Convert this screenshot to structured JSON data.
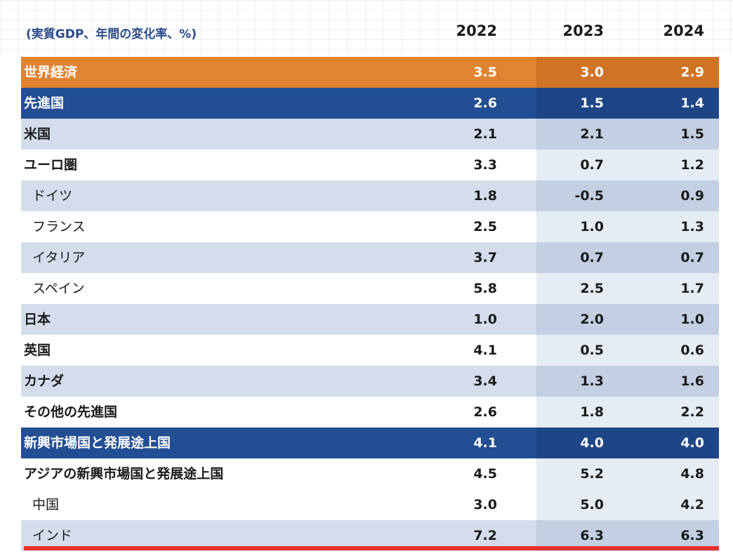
{
  "chart_data": {
    "type": "table",
    "unit_label": "(実質GDP、年間の変化率、%)",
    "columns": [
      "2022",
      "2023",
      "2024"
    ],
    "rows": [
      {
        "label": "世界経済",
        "values": [
          "3.5",
          "3.0",
          "2.9"
        ],
        "style": "orange"
      },
      {
        "label": "先進国",
        "values": [
          "2.6",
          "1.5",
          "1.4"
        ],
        "style": "blue"
      },
      {
        "label": "米国",
        "values": [
          "2.1",
          "2.1",
          "1.5"
        ],
        "style": "light"
      },
      {
        "label": "ユーロ圏",
        "values": [
          "3.3",
          "0.7",
          "1.2"
        ],
        "style": "white"
      },
      {
        "label": "ドイツ",
        "values": [
          "1.8",
          "-0.5",
          "0.9"
        ],
        "style": "light",
        "sub": true
      },
      {
        "label": "フランス",
        "values": [
          "2.5",
          "1.0",
          "1.3"
        ],
        "style": "white",
        "sub": true
      },
      {
        "label": "イタリア",
        "values": [
          "3.7",
          "0.7",
          "0.7"
        ],
        "style": "light",
        "sub": true
      },
      {
        "label": "スペイン",
        "values": [
          "5.8",
          "2.5",
          "1.7"
        ],
        "style": "white",
        "sub": true
      },
      {
        "label": "日本",
        "values": [
          "1.0",
          "2.0",
          "1.0"
        ],
        "style": "light"
      },
      {
        "label": "英国",
        "values": [
          "4.1",
          "0.5",
          "0.6"
        ],
        "style": "white"
      },
      {
        "label": "カナダ",
        "values": [
          "3.4",
          "1.3",
          "1.6"
        ],
        "style": "light"
      },
      {
        "label": "その他の先進国",
        "values": [
          "2.6",
          "1.8",
          "2.2"
        ],
        "style": "white"
      },
      {
        "label": "新興市場国と発展途上国",
        "values": [
          "4.1",
          "4.0",
          "4.0"
        ],
        "style": "blue"
      },
      {
        "label": "アジアの新興市場国と発展途上国",
        "values": [
          "4.5",
          "5.2",
          "4.8"
        ],
        "style": "white"
      },
      {
        "label": "中国",
        "values": [
          "3.0",
          "5.0",
          "4.2"
        ],
        "style": "white",
        "sub": true
      },
      {
        "label": "インド",
        "values": [
          "7.2",
          "6.3",
          "6.3"
        ],
        "style": "light",
        "sub": true
      }
    ]
  },
  "colors": {
    "orange": "#e08432",
    "blue": "#224e93",
    "light_row": "#d3ddeb",
    "accent_line": "#e8312a"
  }
}
